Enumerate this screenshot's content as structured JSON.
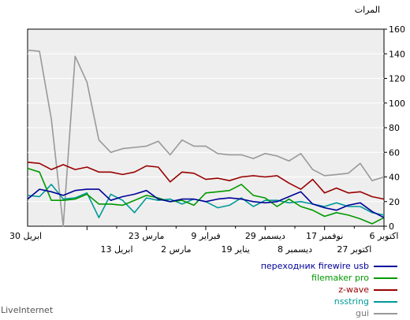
{
  "chart_data": {
    "type": "line",
    "ylabel": "المرات",
    "ylim": [
      0,
      160
    ],
    "yticks": [
      0,
      20,
      40,
      60,
      80,
      100,
      120,
      140,
      160
    ],
    "grid": true,
    "x_tick_labels_row1": [
      "6 اكتوبر",
      "17 نوفمبر",
      "29 ديسمبر",
      "9 فبراير",
      "23 مارس",
      "30 ابريل"
    ],
    "x_tick_labels_row2": [
      "27 اكتوبر",
      "8 ديسمبر",
      "19 يناير",
      "2 مارس",
      "13 ابريل"
    ],
    "x_note": "weekly points ordered oldest (left) to newest (right)",
    "series": [
      {
        "name": "переходник firewire usb",
        "color": "#000099",
        "values": [
          22,
          30,
          28,
          25,
          29,
          30,
          30,
          21,
          24,
          26,
          29,
          22,
          20,
          22,
          22,
          20,
          22,
          23,
          22,
          20,
          19,
          20,
          24,
          28,
          18,
          15,
          13,
          17,
          19,
          12,
          7
        ]
      },
      {
        "name": "filemaker pro",
        "color": "#009900",
        "values": [
          47,
          44,
          21,
          21,
          22,
          26,
          18,
          18,
          17,
          21,
          25,
          23,
          20,
          21,
          17,
          27,
          28,
          29,
          34,
          25,
          23,
          16,
          22,
          16,
          13,
          8,
          11,
          9,
          6,
          2,
          7
        ]
      },
      {
        "name": "z-wave",
        "color": "#990000",
        "values": [
          52,
          51,
          46,
          50,
          46,
          48,
          44,
          44,
          42,
          44,
          49,
          48,
          36,
          44,
          43,
          38,
          39,
          37,
          40,
          41,
          40,
          41,
          35,
          30,
          38,
          27,
          31,
          27,
          28,
          24,
          22
        ]
      },
      {
        "name": "nsstring",
        "color": "#009999",
        "values": [
          25,
          24,
          34,
          22,
          23,
          27,
          7,
          26,
          21,
          11,
          23,
          21,
          22,
          18,
          22,
          20,
          15,
          17,
          23,
          16,
          21,
          21,
          19,
          20,
          18,
          16,
          19,
          16,
          16,
          11,
          9
        ]
      },
      {
        "name": "gui",
        "color": "#999999",
        "values": [
          143,
          142,
          87,
          0,
          138,
          117,
          70,
          60,
          63,
          64,
          65,
          69,
          58,
          70,
          65,
          65,
          59,
          58,
          58,
          55,
          59,
          57,
          53,
          59,
          46,
          41,
          42,
          43,
          51,
          37,
          40
        ]
      }
    ]
  },
  "brand": "LiveInternet"
}
